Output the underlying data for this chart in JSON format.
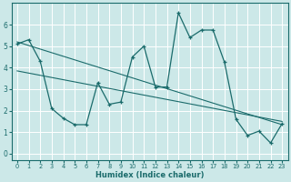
{
  "xlabel": "Humidex (Indice chaleur)",
  "xlim": [
    -0.5,
    23.5
  ],
  "ylim": [
    -0.3,
    7.0
  ],
  "yticks": [
    0,
    1,
    2,
    3,
    4,
    5,
    6
  ],
  "xticks": [
    0,
    1,
    2,
    3,
    4,
    5,
    6,
    7,
    8,
    9,
    10,
    11,
    12,
    13,
    14,
    15,
    16,
    17,
    18,
    19,
    20,
    21,
    22,
    23
  ],
  "bg_color": "#cce8e8",
  "line_color": "#1a6b6b",
  "grid_color": "#ffffff",
  "curve1_x": [
    0,
    1,
    2,
    3,
    4,
    5,
    6,
    7,
    8,
    9,
    10,
    11,
    12,
    13,
    14,
    15,
    16,
    17,
    18,
    19,
    20,
    21,
    22,
    23
  ],
  "curve1_y": [
    5.1,
    5.3,
    4.3,
    2.1,
    1.65,
    1.35,
    1.35,
    3.3,
    2.3,
    2.4,
    4.5,
    5.0,
    3.1,
    3.1,
    6.55,
    5.4,
    5.75,
    5.75,
    4.25,
    1.6,
    0.85,
    1.05,
    0.5,
    1.4
  ],
  "trend1_x": [
    0,
    23
  ],
  "trend1_y": [
    5.2,
    1.35
  ],
  "trend2_x": [
    0,
    23
  ],
  "trend2_y": [
    3.85,
    1.5
  ],
  "figsize": [
    3.2,
    2.0
  ],
  "dpi": 100
}
